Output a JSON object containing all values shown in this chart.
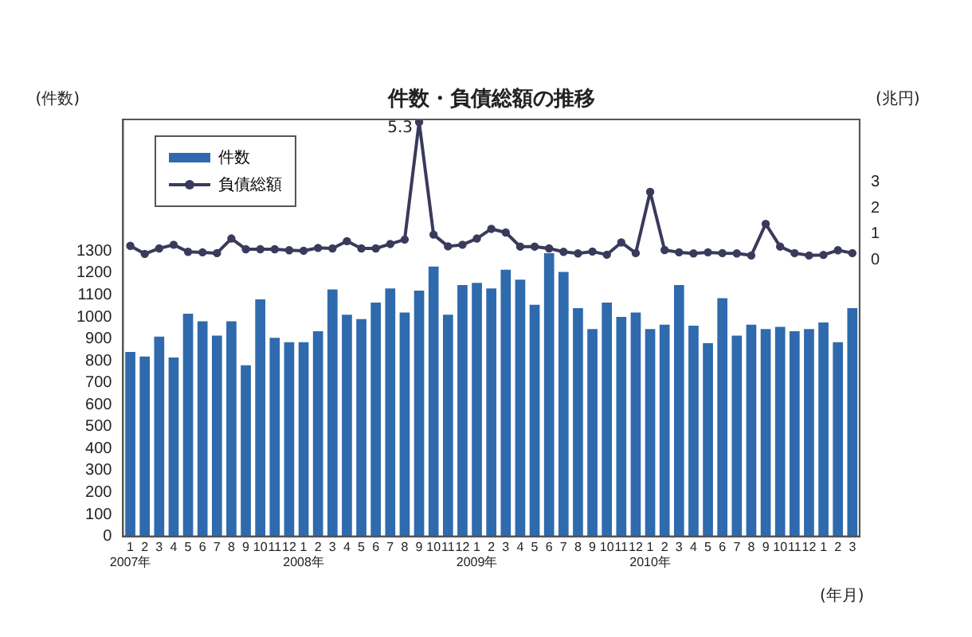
{
  "chart_data": {
    "type": "bar",
    "title": "件数・負債総額の推移",
    "ylabel": "(件数)",
    "y2label": "(兆円)",
    "xlabel": "(年月)",
    "categories": [
      "1\n2007年",
      "2",
      "3",
      "4",
      "5",
      "6",
      "7",
      "8",
      "9",
      "10",
      "11",
      "12",
      "1\n2008年",
      "2",
      "3",
      "4",
      "5",
      "6",
      "7",
      "8",
      "9",
      "10",
      "11",
      "12",
      "1\n2009年",
      "2",
      "3",
      "4",
      "5",
      "6",
      "7",
      "8",
      "9",
      "10",
      "11",
      "12",
      "1\n2010年",
      "2",
      "3",
      "4",
      "5",
      "6",
      "7",
      "8",
      "9",
      "10",
      "11",
      "12",
      "1",
      "2",
      "3"
    ],
    "series": [
      {
        "name": "件数",
        "color": "#2e6aad",
        "values": [
          840,
          820,
          910,
          815,
          1015,
          980,
          915,
          980,
          780,
          1080,
          905,
          885,
          885,
          935,
          1125,
          1010,
          990,
          1065,
          1130,
          1020,
          1120,
          1230,
          1010,
          1145,
          1155,
          1130,
          1215,
          1170,
          1055,
          1290,
          1205,
          1040,
          945,
          1065,
          1000,
          1020,
          945,
          965,
          1145,
          960,
          880,
          1085,
          915,
          965,
          945,
          955,
          935,
          945,
          975,
          885,
          1040
        ]
      },
      {
        "name": "負債総額",
        "type": "line",
        "axis": "y2",
        "color": "#3a3a5c",
        "values": [
          0.55,
          0.24,
          0.45,
          0.59,
          0.32,
          0.3,
          0.27,
          0.83,
          0.42,
          0.42,
          0.42,
          0.38,
          0.36,
          0.47,
          0.45,
          0.73,
          0.45,
          0.45,
          0.62,
          0.79,
          5.3,
          0.98,
          0.53,
          0.59,
          0.83,
          1.2,
          1.06,
          0.52,
          0.52,
          0.45,
          0.32,
          0.26,
          0.33,
          0.21,
          0.68,
          0.27,
          2.62,
          0.39,
          0.3,
          0.26,
          0.3,
          0.27,
          0.26,
          0.18,
          1.39,
          0.52,
          0.27,
          0.18,
          0.2,
          0.38,
          0.27
        ],
        "value_labels": [
          null,
          null,
          null,
          null,
          null,
          null,
          null,
          null,
          null,
          null,
          null,
          null,
          null,
          null,
          null,
          null,
          null,
          null,
          null,
          null,
          "5.3",
          null,
          null,
          null,
          null,
          null,
          null,
          null,
          null,
          null,
          null,
          null,
          null,
          null,
          null,
          null,
          null,
          null,
          null,
          null,
          null,
          null,
          null,
          null,
          null,
          null,
          null,
          null,
          null,
          null,
          null
        ]
      }
    ],
    "ylim": [
      0,
      1900
    ],
    "yticks": [
      0,
      100,
      200,
      300,
      400,
      500,
      600,
      700,
      800,
      900,
      1000,
      1100,
      1200,
      1300
    ],
    "y2lim": [
      -10.6,
      5.4
    ],
    "y2ticks": [
      0,
      1,
      2,
      3
    ],
    "legend": "top left",
    "marker": "circle",
    "grid": false
  }
}
